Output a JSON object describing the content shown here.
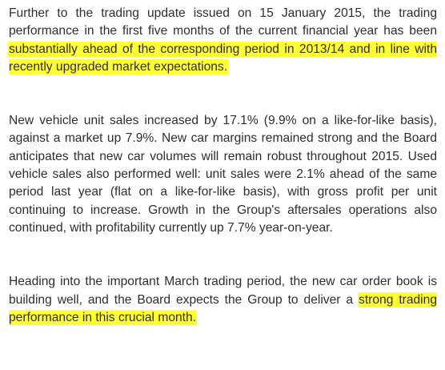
{
  "document": {
    "paragraphs": [
      {
        "segments": [
          {
            "text": "Further to the trading update issued on 15 January 2015, the trading performance in the first five months of the current financial year has been ",
            "highlight": false
          },
          {
            "text": "substantially ahead of the corresponding period in 2013/14 and in line with recently upgraded market expectations.",
            "highlight": true
          }
        ]
      },
      {
        "segments": [
          {
            "text": "New vehicle unit sales increased by 17.1% (9.9% on a like-for-like basis), against a market up 7.9%. New car margins remained strong and the Board anticipates that new car volumes will remain robust throughout 2015. Used vehicle sales also performed well: unit sales were 2.1% ahead of the same period last year (flat on a like-for-like basis), with gross profit per unit continuing to increase. Growth in the Group's aftersales operations also continued, with profitability currently up 7.7% year-on-year.",
            "highlight": false
          }
        ]
      },
      {
        "segments": [
          {
            "text": "Heading into the important March trading period, the new car order book is building well, and the Board expects the Group to deliver a ",
            "highlight": false
          },
          {
            "text": "strong trading performance in this crucial month.",
            "highlight": true
          }
        ]
      }
    ],
    "highlight_color": "#ffff33",
    "text_color": "#2e2e2e"
  }
}
